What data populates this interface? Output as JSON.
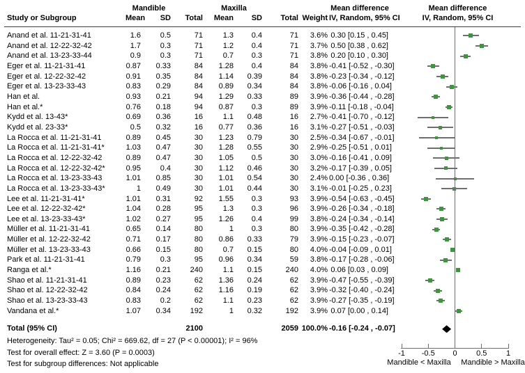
{
  "header": {
    "groups": {
      "mandible": "Mandible",
      "maxilla": "Maxilla",
      "md_text": "Mean difference",
      "md_plot": "Mean difference"
    },
    "cols": {
      "study": "Study or Subgroup",
      "mean1": "Mean",
      "sd1": "SD",
      "total1": "Total",
      "mean2": "Mean",
      "sd2": "SD",
      "total2": "Total",
      "weight": "Weight",
      "ci": "IV, Random, 95% CI",
      "ci_plot": "IV, Random, 95% CI"
    }
  },
  "chart_data": {
    "type": "scatter",
    "subtype": "forest-plot-meta-analysis",
    "effect_measure": "Mean difference (IV, Random, 95% CI)",
    "xlim": [
      -1,
      1
    ],
    "x_ticks": [
      -1,
      -0.5,
      0,
      0.5,
      1
    ],
    "x_tick_labels": [
      "-1",
      "-0.5",
      "0",
      "0.5",
      "1"
    ],
    "axis_left_label": "Mandible < Maxilla",
    "axis_right_label": "Mandible > Maxilla",
    "marker_color": "#3c963c",
    "line_color": "#6e6e6e",
    "diamond_color": "#000000",
    "studies": [
      {
        "label": "Anand et al. 11-21-31-41",
        "m_mean": "1.6",
        "m_sd": "0.5",
        "m_total": "71",
        "x_mean": "1.3",
        "x_sd": "0.4",
        "x_total": "71",
        "weight": "3.6%",
        "ci_text": "0.30 [0.15 , 0.45]",
        "md": 0.3,
        "lo": 0.15,
        "hi": 0.45,
        "w": 3.6
      },
      {
        "label": "Anand et al. 12-22-32-42",
        "m_mean": "1.7",
        "m_sd": "0.3",
        "m_total": "71",
        "x_mean": "1.2",
        "x_sd": "0.4",
        "x_total": "71",
        "weight": "3.7%",
        "ci_text": "0.50 [0.38 , 0.62]",
        "md": 0.5,
        "lo": 0.38,
        "hi": 0.62,
        "w": 3.7
      },
      {
        "label": "Anand et al. 13-23-33-44",
        "m_mean": "0.9",
        "m_sd": "0.3",
        "m_total": "71",
        "x_mean": "0.7",
        "x_sd": "0.3",
        "x_total": "71",
        "weight": "3.8%",
        "ci_text": "0.20 [0.10 , 0.30]",
        "md": 0.2,
        "lo": 0.1,
        "hi": 0.3,
        "w": 3.8
      },
      {
        "label": "Eger et al. 11-21-31-41",
        "m_mean": "0.87",
        "m_sd": "0.33",
        "m_total": "84",
        "x_mean": "1.28",
        "x_sd": "0.4",
        "x_total": "84",
        "weight": "3.8%",
        "ci_text": "-0.41 [-0.52 , -0.30]",
        "md": -0.41,
        "lo": -0.52,
        "hi": -0.3,
        "w": 3.8
      },
      {
        "label": "Eger et al. 12-22-32-42",
        "m_mean": "0.91",
        "m_sd": "0.35",
        "m_total": "84",
        "x_mean": "1.14",
        "x_sd": "0.39",
        "x_total": "84",
        "weight": "3.8%",
        "ci_text": "-0.23 [-0.34 , -0.12]",
        "md": -0.23,
        "lo": -0.34,
        "hi": -0.12,
        "w": 3.8
      },
      {
        "label": "Eger et al. 13-23-33-43",
        "m_mean": "0.83",
        "m_sd": "0.29",
        "m_total": "84",
        "x_mean": "0.89",
        "x_sd": "0.34",
        "x_total": "84",
        "weight": "3.8%",
        "ci_text": "-0.06 [-0.16 , 0.04]",
        "md": -0.06,
        "lo": -0.16,
        "hi": 0.04,
        "w": 3.8
      },
      {
        "label": "Han et al.",
        "m_mean": "0.93",
        "m_sd": "0.21",
        "m_total": "94",
        "x_mean": "1.29",
        "x_sd": "0.33",
        "x_total": "89",
        "weight": "3.9%",
        "ci_text": "-0.36 [-0.44 , -0.28]",
        "md": -0.36,
        "lo": -0.44,
        "hi": -0.28,
        "w": 3.9
      },
      {
        "label": "Han et al.*",
        "m_mean": "0.76",
        "m_sd": "0.18",
        "m_total": "94",
        "x_mean": "0.87",
        "x_sd": "0.3",
        "x_total": "89",
        "weight": "3.9%",
        "ci_text": "-0.11 [-0.18 , -0.04]",
        "md": -0.11,
        "lo": -0.18,
        "hi": -0.04,
        "w": 3.9
      },
      {
        "label": "Kydd et al. 13-43*",
        "m_mean": "0.69",
        "m_sd": "0.36",
        "m_total": "16",
        "x_mean": "1.1",
        "x_sd": "0.48",
        "x_total": "16",
        "weight": "2.7%",
        "ci_text": "-0.41 [-0.70 , -0.12]",
        "md": -0.41,
        "lo": -0.7,
        "hi": -0.12,
        "w": 2.7
      },
      {
        "label": "Kydd et al. 23-33*",
        "m_mean": "0.5",
        "m_sd": "0.32",
        "m_total": "16",
        "x_mean": "0.77",
        "x_sd": "0.36",
        "x_total": "16",
        "weight": "3.1%",
        "ci_text": "-0.27 [-0.51 , -0.03]",
        "md": -0.27,
        "lo": -0.51,
        "hi": -0.03,
        "w": 3.1
      },
      {
        "label": "La Rocca et al. 11-21-31-41",
        "m_mean": "0.89",
        "m_sd": "0.45",
        "m_total": "30",
        "x_mean": "1.23",
        "x_sd": "0.79",
        "x_total": "30",
        "weight": "2.5%",
        "ci_text": "-0.34 [-0.67 , -0.01]",
        "md": -0.34,
        "lo": -0.67,
        "hi": -0.01,
        "w": 2.5
      },
      {
        "label": "La Rocca et al. 11-21-31-41*",
        "m_mean": "1.03",
        "m_sd": "0.47",
        "m_total": "30",
        "x_mean": "1.28",
        "x_sd": "0.55",
        "x_total": "30",
        "weight": "2.9%",
        "ci_text": "-0.25 [-0.51 , 0.01]",
        "md": -0.25,
        "lo": -0.51,
        "hi": 0.01,
        "w": 2.9
      },
      {
        "label": "La Rocca et al. 12-22-32-42",
        "m_mean": "0.89",
        "m_sd": "0.47",
        "m_total": "30",
        "x_mean": "1.05",
        "x_sd": "0.5",
        "x_total": "30",
        "weight": "3.0%",
        "ci_text": "-0.16 [-0.41 , 0.09]",
        "md": -0.16,
        "lo": -0.41,
        "hi": 0.09,
        "w": 3.0
      },
      {
        "label": "La Rocca et al. 12-22-32-42*",
        "m_mean": "0.95",
        "m_sd": "0.4",
        "m_total": "30",
        "x_mean": "1.12",
        "x_sd": "0.46",
        "x_total": "30",
        "weight": "3.2%",
        "ci_text": "-0.17 [-0.39 , 0.05]",
        "md": -0.17,
        "lo": -0.39,
        "hi": 0.05,
        "w": 3.2
      },
      {
        "label": "La Rocca et al. 13-23-33-43",
        "m_mean": "1.01",
        "m_sd": "0.85",
        "m_total": "30",
        "x_mean": "1.01",
        "x_sd": "0.54",
        "x_total": "30",
        "weight": "2.4%",
        "ci_text": "0.00 [-0.36 , 0.36]",
        "md": 0.0,
        "lo": -0.36,
        "hi": 0.36,
        "w": 2.4
      },
      {
        "label": "La Rocca et al. 13-23-33-43*",
        "m_mean": "1",
        "m_sd": "0.49",
        "m_total": "30",
        "x_mean": "1.01",
        "x_sd": "0.44",
        "x_total": "30",
        "weight": "3.1%",
        "ci_text": "-0.01 [-0.25 , 0.23]",
        "md": -0.01,
        "lo": -0.25,
        "hi": 0.23,
        "w": 3.1
      },
      {
        "label": "Lee et al. 11-21-31-41*",
        "m_mean": "1.01",
        "m_sd": "0.31",
        "m_total": "92",
        "x_mean": "1.55",
        "x_sd": "0.3",
        "x_total": "93",
        "weight": "3.9%",
        "ci_text": "-0.54 [-0.63 , -0.45]",
        "md": -0.54,
        "lo": -0.63,
        "hi": -0.45,
        "w": 3.9
      },
      {
        "label": "Lee et al. 12-22-32-42*",
        "m_mean": "1.04",
        "m_sd": "0.28",
        "m_total": "95",
        "x_mean": "1.3",
        "x_sd": "0.3",
        "x_total": "96",
        "weight": "3.9%",
        "ci_text": "-0.26 [-0.34 , -0.18]",
        "md": -0.26,
        "lo": -0.34,
        "hi": -0.18,
        "w": 3.9
      },
      {
        "label": "Lee et al. 13-23-33-43*",
        "m_mean": "1.02",
        "m_sd": "0.27",
        "m_total": "95",
        "x_mean": "1.26",
        "x_sd": "0.4",
        "x_total": "99",
        "weight": "3.8%",
        "ci_text": "-0.24 [-0.34 , -0.14]",
        "md": -0.24,
        "lo": -0.34,
        "hi": -0.14,
        "w": 3.8
      },
      {
        "label": "Müller et al. 11-21-31-41",
        "m_mean": "0.65",
        "m_sd": "0.14",
        "m_total": "80",
        "x_mean": "1",
        "x_sd": "0.3",
        "x_total": "80",
        "weight": "3.9%",
        "ci_text": "-0.35 [-0.42 , -0.28]",
        "md": -0.35,
        "lo": -0.42,
        "hi": -0.28,
        "w": 3.9
      },
      {
        "label": "Müller et al. 12-22-32-42",
        "m_mean": "0.71",
        "m_sd": "0.17",
        "m_total": "80",
        "x_mean": "0.86",
        "x_sd": "0.33",
        "x_total": "79",
        "weight": "3.9%",
        "ci_text": "-0.15 [-0.23 , -0.07]",
        "md": -0.15,
        "lo": -0.23,
        "hi": -0.07,
        "w": 3.9
      },
      {
        "label": "Müller et al. 13-23-33-43",
        "m_mean": "0.66",
        "m_sd": "0.15",
        "m_total": "80",
        "x_mean": "0.7",
        "x_sd": "0.15",
        "x_total": "80",
        "weight": "4.0%",
        "ci_text": "-0.04 [-0.09 , 0.01]",
        "md": -0.04,
        "lo": -0.09,
        "hi": 0.01,
        "w": 4.0
      },
      {
        "label": "Park et al. 11-21-31-41",
        "m_mean": "0.79",
        "m_sd": "0.3",
        "m_total": "95",
        "x_mean": "0.96",
        "x_sd": "0.34",
        "x_total": "59",
        "weight": "3.8%",
        "ci_text": "-0.17 [-0.28 , -0.06]",
        "md": -0.17,
        "lo": -0.28,
        "hi": -0.06,
        "w": 3.8
      },
      {
        "label": "Ranga et al.*",
        "m_mean": "1.16",
        "m_sd": "0.21",
        "m_total": "240",
        "x_mean": "1.1",
        "x_sd": "0.15",
        "x_total": "240",
        "weight": "4.0%",
        "ci_text": "0.06 [0.03 , 0.09]",
        "md": 0.06,
        "lo": 0.03,
        "hi": 0.09,
        "w": 4.0
      },
      {
        "label": "Shao et al. 11-21-31-41",
        "m_mean": "0.89",
        "m_sd": "0.23",
        "m_total": "62",
        "x_mean": "1.36",
        "x_sd": "0.24",
        "x_total": "62",
        "weight": "3.9%",
        "ci_text": "-0.47 [-0.55 , -0.39]",
        "md": -0.47,
        "lo": -0.55,
        "hi": -0.39,
        "w": 3.9
      },
      {
        "label": "Shao et al. 12-22-32-42",
        "m_mean": "0.84",
        "m_sd": "0.24",
        "m_total": "62",
        "x_mean": "1.16",
        "x_sd": "0.19",
        "x_total": "62",
        "weight": "3.9%",
        "ci_text": "-0.32 [-0.40 , -0.24]",
        "md": -0.32,
        "lo": -0.4,
        "hi": -0.24,
        "w": 3.9
      },
      {
        "label": "Shao et al. 13-23-33-43",
        "m_mean": "0.83",
        "m_sd": "0.2",
        "m_total": "62",
        "x_mean": "1.1",
        "x_sd": "0.23",
        "x_total": "62",
        "weight": "3.9%",
        "ci_text": "-0.27 [-0.35 , -0.19]",
        "md": -0.27,
        "lo": -0.35,
        "hi": -0.19,
        "w": 3.9
      },
      {
        "label": "Vandana et al.*",
        "m_mean": "1.07",
        "m_sd": "0.34",
        "m_total": "192",
        "x_mean": "1",
        "x_sd": "0.32",
        "x_total": "192",
        "weight": "3.9%",
        "ci_text": "0.07 [0.00 , 0.14]",
        "md": 0.07,
        "lo": 0.0,
        "hi": 0.14,
        "w": 3.9
      }
    ],
    "total": {
      "label": "Total (95% CI)",
      "m_total": "2100",
      "x_total": "2059",
      "weight": "100.0%",
      "ci_text": "-0.16 [-0.24 , -0.07]",
      "md": -0.16,
      "lo": -0.24,
      "hi": -0.07
    }
  },
  "footer": {
    "heterogeneity": "Heterogeneity: Tau² = 0.05; Chi² = 669.62, df = 27 (P < 0.00001); I² = 96%",
    "overall_effect": "Test for overall effect: Z = 3.60 (P = 0.0003)",
    "subgroup": "Test for subgroup differences: Not applicable"
  }
}
